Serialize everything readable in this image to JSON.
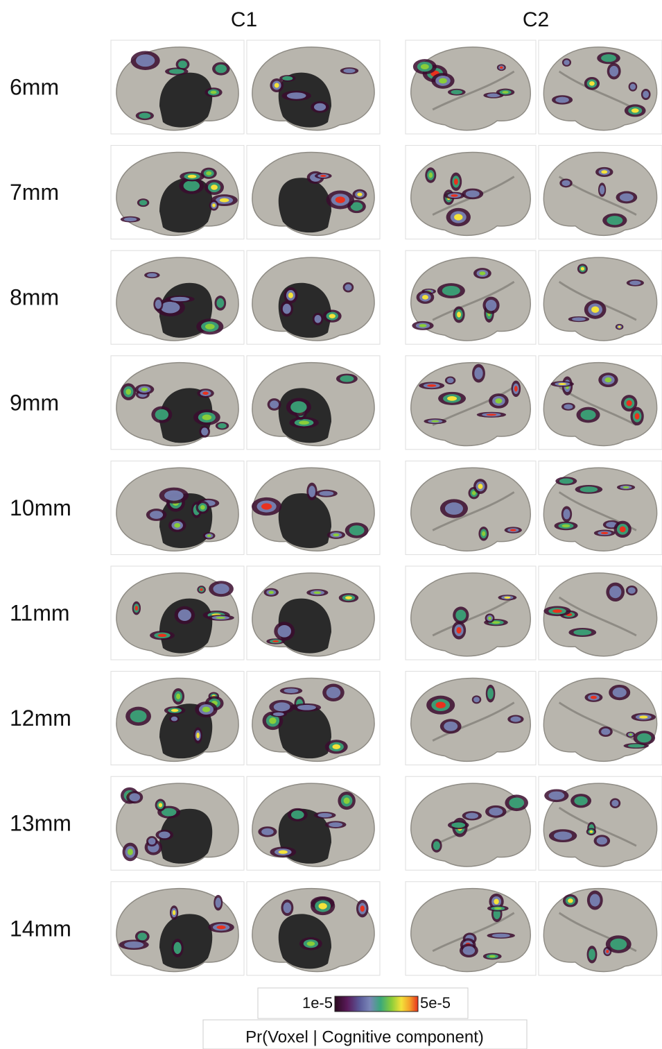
{
  "header": {
    "columns": [
      "C1",
      "C2"
    ]
  },
  "rows": [
    "6mm",
    "7mm",
    "8mm",
    "9mm",
    "10mm",
    "11mm",
    "12mm",
    "13mm",
    "14mm"
  ],
  "legend": {
    "min_label": "1e-5",
    "max_label": "5e-5",
    "title": "Pr(Voxel | Cognitive component)"
  }
}
